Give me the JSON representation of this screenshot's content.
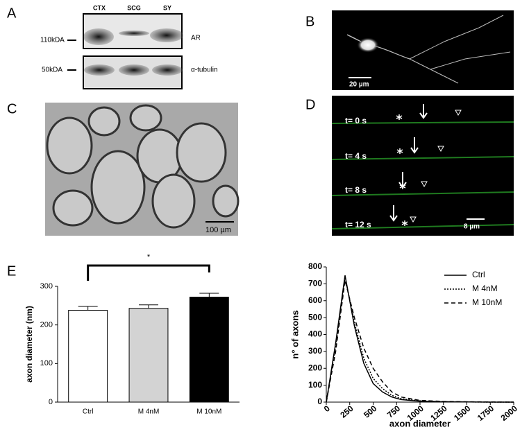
{
  "panels": {
    "A": {
      "label": "A",
      "columns": [
        "CTX",
        "SCG",
        "SY"
      ],
      "rows": [
        {
          "marker": "110kDA",
          "protein": "AR"
        },
        {
          "marker": "50kDA",
          "protein": "α-tubulin"
        }
      ]
    },
    "B": {
      "label": "B",
      "scale_bar": "20 µm"
    },
    "C": {
      "label": "C",
      "scale_bar": "100 µm"
    },
    "D": {
      "label": "D",
      "timepoints": [
        "t= 0 s",
        "t= 4 s",
        "t= 8 s",
        "t= 12 s"
      ],
      "scale_bar": "8 µm"
    },
    "E": {
      "label": "E"
    }
  },
  "chart_data": [
    {
      "type": "bar",
      "categories": [
        "Ctrl",
        "M 4nM",
        "M 10nM"
      ],
      "values": [
        238,
        243,
        272
      ],
      "errors": [
        10,
        9,
        10
      ],
      "colors": [
        "#ffffff",
        "#d3d3d3",
        "#000000"
      ],
      "ylim": [
        0,
        300
      ],
      "yticks": [
        0,
        100,
        200,
        300
      ],
      "y_label": "axon diameter (nm)",
      "annotation": "*"
    },
    {
      "type": "line",
      "x": [
        0,
        100,
        200,
        300,
        400,
        500,
        600,
        700,
        800,
        1000,
        1250,
        1500,
        1750,
        2000
      ],
      "series": [
        {
          "name": "Ctrl",
          "dash": "solid",
          "values": [
            0,
            350,
            750,
            450,
            230,
            110,
            60,
            30,
            15,
            5,
            2,
            1,
            0,
            0
          ]
        },
        {
          "name": "M 4nM",
          "dash": "dotted",
          "values": [
            0,
            330,
            740,
            470,
            260,
            140,
            80,
            40,
            20,
            8,
            3,
            1,
            0,
            0
          ]
        },
        {
          "name": "M 10nM",
          "dash": "dashed",
          "values": [
            0,
            300,
            720,
            500,
            320,
            200,
            120,
            60,
            30,
            10,
            4,
            2,
            1,
            0
          ]
        }
      ],
      "xlim": [
        0,
        2000
      ],
      "ylim": [
        0,
        800
      ],
      "xticks": [
        0,
        250,
        500,
        750,
        1000,
        1250,
        1500,
        1750,
        2000
      ],
      "yticks": [
        0,
        100,
        200,
        300,
        400,
        500,
        600,
        700,
        800
      ],
      "x_label": "axon diameter",
      "y_label": "n° of axons",
      "legend": "upper right"
    }
  ]
}
